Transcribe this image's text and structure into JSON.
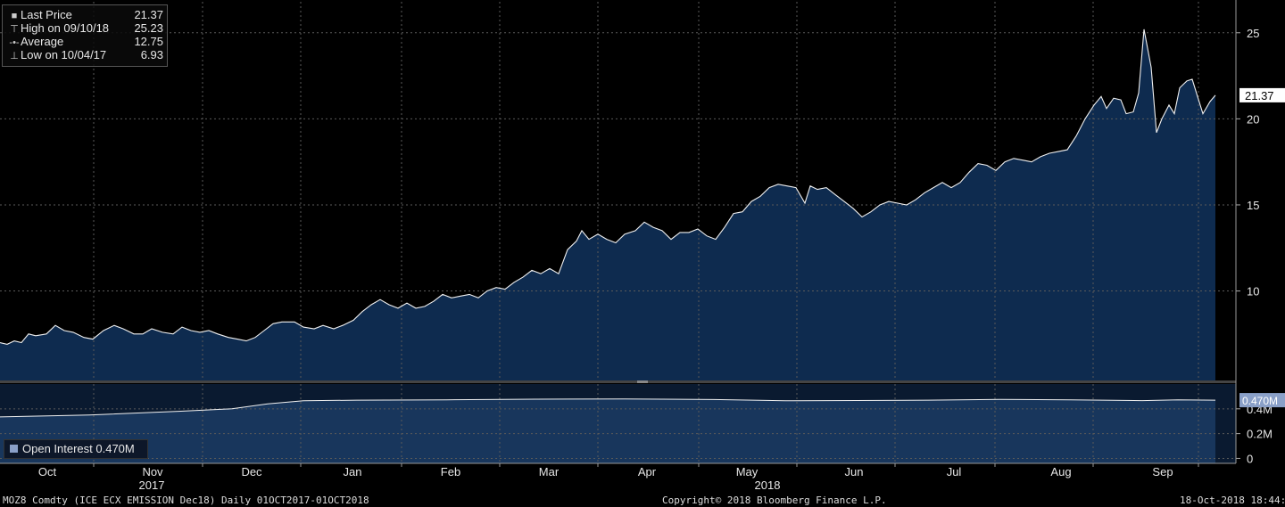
{
  "legend": {
    "last_label": "Last Price",
    "last_value": "21.37",
    "high_label": "High on 09/10/18",
    "high_value": "25.23",
    "avg_label": "Average",
    "avg_value": "12.75",
    "low_label": "Low on 10/04/17",
    "low_value": "6.93"
  },
  "oi_legend": {
    "label": "Open Interest 0.470M"
  },
  "footer": {
    "ticker": "MOZ8 Comdty (ICE ECX EMISSION  Dec18)  Daily 01OCT2017-01OCT2018",
    "copyright": "Copyright© 2018 Bloomberg Finance L.P.",
    "timestamp": "18-Oct-2018 18:44:18"
  },
  "colors": {
    "background": "#000000",
    "price_fill": "#0e2b4f",
    "line": "#f0f0f0",
    "grid": "#5a5a5a",
    "badge": "#8aa0c8"
  },
  "chart_data": [
    {
      "type": "area",
      "series": [
        {
          "name": "Last Price"
        }
      ],
      "y_ticks": [
        10,
        15,
        20,
        25
      ],
      "ylim": [
        4.8,
        26.8
      ],
      "last_value_label": "21.37",
      "months": [
        "Oct",
        "Nov",
        "Dec",
        "Jan",
        "Feb",
        "Mar",
        "Apr",
        "May",
        "Jun",
        "Jul",
        "Aug",
        "Sep"
      ],
      "years": [
        "2017",
        "2018"
      ],
      "grid": true,
      "points": [
        [
          0,
          7.0
        ],
        [
          8,
          6.9
        ],
        [
          16,
          7.1
        ],
        [
          24,
          7.0
        ],
        [
          32,
          7.5
        ],
        [
          40,
          7.4
        ],
        [
          52,
          7.5
        ],
        [
          62,
          8.0
        ],
        [
          72,
          7.7
        ],
        [
          82,
          7.6
        ],
        [
          94,
          7.3
        ],
        [
          104,
          7.2
        ],
        [
          116,
          7.7
        ],
        [
          128,
          8.0
        ],
        [
          138,
          7.8
        ],
        [
          150,
          7.5
        ],
        [
          160,
          7.5
        ],
        [
          170,
          7.8
        ],
        [
          182,
          7.6
        ],
        [
          194,
          7.5
        ],
        [
          204,
          7.9
        ],
        [
          214,
          7.7
        ],
        [
          224,
          7.6
        ],
        [
          234,
          7.7
        ],
        [
          244,
          7.5
        ],
        [
          256,
          7.3
        ],
        [
          266,
          7.2
        ],
        [
          276,
          7.1
        ],
        [
          286,
          7.3
        ],
        [
          296,
          7.7
        ],
        [
          306,
          8.1
        ],
        [
          316,
          8.2
        ],
        [
          330,
          8.2
        ],
        [
          340,
          7.9
        ],
        [
          352,
          7.8
        ],
        [
          362,
          8.0
        ],
        [
          374,
          7.8
        ],
        [
          384,
          8.0
        ],
        [
          396,
          8.3
        ],
        [
          406,
          8.8
        ],
        [
          416,
          9.2
        ],
        [
          426,
          9.5
        ],
        [
          436,
          9.2
        ],
        [
          446,
          9.0
        ],
        [
          456,
          9.3
        ],
        [
          466,
          9.0
        ],
        [
          476,
          9.1
        ],
        [
          486,
          9.4
        ],
        [
          496,
          9.8
        ],
        [
          506,
          9.6
        ],
        [
          516,
          9.7
        ],
        [
          526,
          9.8
        ],
        [
          536,
          9.6
        ],
        [
          546,
          10.0
        ],
        [
          556,
          10.2
        ],
        [
          566,
          10.1
        ],
        [
          576,
          10.5
        ],
        [
          586,
          10.8
        ],
        [
          596,
          11.2
        ],
        [
          606,
          11.0
        ],
        [
          616,
          11.3
        ],
        [
          626,
          11.0
        ],
        [
          636,
          12.4
        ],
        [
          646,
          12.9
        ],
        [
          652,
          13.5
        ],
        [
          660,
          13.0
        ],
        [
          670,
          13.3
        ],
        [
          680,
          13.0
        ],
        [
          690,
          12.8
        ],
        [
          700,
          13.3
        ],
        [
          712,
          13.5
        ],
        [
          722,
          14.0
        ],
        [
          732,
          13.7
        ],
        [
          742,
          13.5
        ],
        [
          752,
          13.0
        ],
        [
          762,
          13.4
        ],
        [
          772,
          13.4
        ],
        [
          782,
          13.6
        ],
        [
          792,
          13.2
        ],
        [
          802,
          13.0
        ],
        [
          812,
          13.7
        ],
        [
          822,
          14.5
        ],
        [
          832,
          14.6
        ],
        [
          842,
          15.2
        ],
        [
          852,
          15.5
        ],
        [
          862,
          16.0
        ],
        [
          872,
          16.2
        ],
        [
          882,
          16.1
        ],
        [
          892,
          16.0
        ],
        [
          902,
          15.1
        ],
        [
          908,
          16.1
        ],
        [
          916,
          15.9
        ],
        [
          926,
          16.0
        ],
        [
          936,
          15.6
        ],
        [
          946,
          15.2
        ],
        [
          956,
          14.8
        ],
        [
          966,
          14.3
        ],
        [
          976,
          14.6
        ],
        [
          986,
          15.0
        ],
        [
          996,
          15.2
        ],
        [
          1006,
          15.1
        ],
        [
          1016,
          15.0
        ],
        [
          1026,
          15.3
        ],
        [
          1036,
          15.7
        ],
        [
          1046,
          16.0
        ],
        [
          1056,
          16.3
        ],
        [
          1066,
          16.0
        ],
        [
          1076,
          16.3
        ],
        [
          1086,
          16.9
        ],
        [
          1096,
          17.4
        ],
        [
          1106,
          17.3
        ],
        [
          1116,
          17.0
        ],
        [
          1126,
          17.5
        ],
        [
          1136,
          17.7
        ],
        [
          1146,
          17.6
        ],
        [
          1156,
          17.5
        ],
        [
          1166,
          17.8
        ],
        [
          1176,
          18.0
        ],
        [
          1186,
          18.1
        ],
        [
          1196,
          18.2
        ],
        [
          1206,
          19.0
        ],
        [
          1216,
          20.0
        ],
        [
          1226,
          20.8
        ],
        [
          1234,
          21.3
        ],
        [
          1240,
          20.6
        ],
        [
          1248,
          21.2
        ],
        [
          1256,
          21.1
        ],
        [
          1262,
          20.3
        ],
        [
          1270,
          20.4
        ],
        [
          1276,
          21.5
        ],
        [
          1282,
          25.2
        ],
        [
          1290,
          23.0
        ],
        [
          1296,
          19.2
        ],
        [
          1302,
          20.0
        ],
        [
          1310,
          20.8
        ],
        [
          1316,
          20.3
        ],
        [
          1322,
          21.8
        ],
        [
          1330,
          22.2
        ],
        [
          1336,
          22.3
        ],
        [
          1342,
          21.3
        ],
        [
          1348,
          20.3
        ],
        [
          1356,
          21.0
        ],
        [
          1362,
          21.37
        ]
      ]
    },
    {
      "type": "area",
      "series": [
        {
          "name": "Open Interest"
        }
      ],
      "y_ticks": [
        0,
        0.2,
        0.4
      ],
      "y_tick_labels": [
        "0",
        "0.2M",
        "0.4M"
      ],
      "ylim": [
        -0.04,
        0.6
      ],
      "last_value_label": "0.470M",
      "grid": true,
      "points": [
        [
          0,
          0.335
        ],
        [
          100,
          0.35
        ],
        [
          200,
          0.38
        ],
        [
          260,
          0.4
        ],
        [
          300,
          0.44
        ],
        [
          340,
          0.465
        ],
        [
          400,
          0.47
        ],
        [
          500,
          0.473
        ],
        [
          600,
          0.478
        ],
        [
          700,
          0.48
        ],
        [
          800,
          0.475
        ],
        [
          880,
          0.465
        ],
        [
          960,
          0.467
        ],
        [
          1040,
          0.47
        ],
        [
          1120,
          0.476
        ],
        [
          1200,
          0.472
        ],
        [
          1280,
          0.466
        ],
        [
          1320,
          0.472
        ],
        [
          1362,
          0.47
        ]
      ]
    }
  ]
}
